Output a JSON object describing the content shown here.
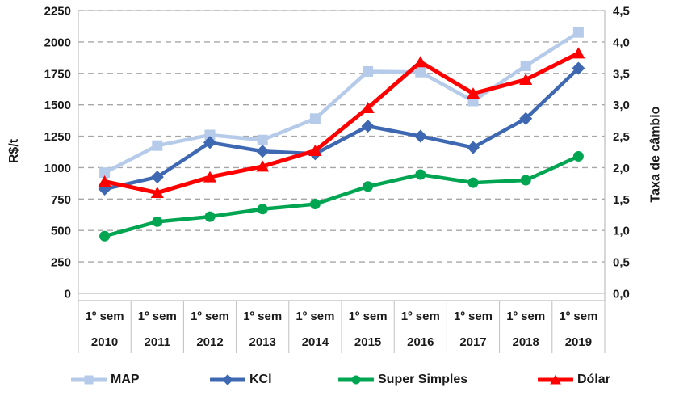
{
  "chart_data": {
    "type": "line",
    "title": "",
    "x_period_label": "1º sem",
    "categories": [
      "2010",
      "2011",
      "2012",
      "2013",
      "2014",
      "2015",
      "2016",
      "2017",
      "2018",
      "2019"
    ],
    "left_axis": {
      "title": "R$/t",
      "min": 0,
      "max": 2250,
      "step": 250,
      "tick_labels": [
        "0",
        "250",
        "500",
        "750",
        "1000",
        "1250",
        "1500",
        "1750",
        "2000",
        "2250"
      ]
    },
    "right_axis": {
      "title": "Taxa de câmbio",
      "min": 0,
      "max": 4.5,
      "step": 0.5,
      "tick_labels": [
        "0,0",
        "0,5",
        "1,0",
        "1,5",
        "2,0",
        "2,5",
        "3,0",
        "3,5",
        "4,0",
        "4,5"
      ]
    },
    "series": [
      {
        "name": "MAP",
        "axis": "left",
        "marker": "square",
        "color": "#B5CBE9",
        "values": [
          960,
          1175,
          1260,
          1220,
          1390,
          1765,
          1760,
          1530,
          1810,
          2075
        ]
      },
      {
        "name": "KCl",
        "axis": "left",
        "marker": "diamond",
        "color": "#3E68B2",
        "values": [
          830,
          925,
          1200,
          1130,
          1110,
          1330,
          1250,
          1160,
          1390,
          1790
        ]
      },
      {
        "name": "Super Simples",
        "axis": "left",
        "marker": "circle",
        "color": "#00A551",
        "values": [
          455,
          570,
          610,
          670,
          710,
          850,
          945,
          880,
          900,
          1090
        ]
      },
      {
        "name": "Dólar",
        "axis": "right",
        "marker": "triangle",
        "color": "#FF0000",
        "values": [
          1.78,
          1.6,
          1.85,
          2.02,
          2.27,
          2.95,
          3.68,
          3.18,
          3.4,
          3.82
        ]
      }
    ],
    "grid": "horizontal-dashed",
    "legend_position": "bottom",
    "colors": {
      "text": "#1a1a1a",
      "gridline": "#A6A6A6",
      "plot_border": "#BFBFBF"
    }
  }
}
